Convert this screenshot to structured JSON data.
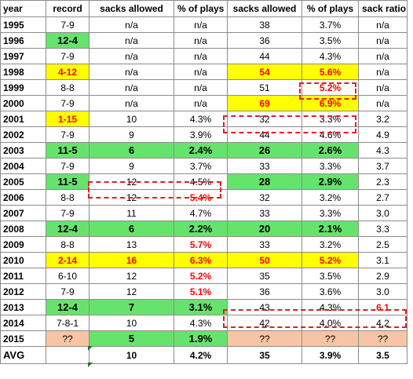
{
  "headers": [
    "year",
    "record",
    "sacks allowed",
    "% of plays",
    "sacks allowed",
    "% of plays",
    "sack ratio"
  ],
  "rows": [
    {
      "year": "1995",
      "record": "7-9",
      "sa1": "n/a",
      "pct1": "n/a",
      "sa2": "38",
      "pct2": "3.7%",
      "ratio": "n/a"
    },
    {
      "year": "1996",
      "record": "12-4",
      "sa1": "n/a",
      "pct1": "n/a",
      "sa2": "36",
      "pct2": "3.5%",
      "ratio": "n/a"
    },
    {
      "year": "1997",
      "record": "7-9",
      "sa1": "n/a",
      "pct1": "n/a",
      "sa2": "44",
      "pct2": "4.3%",
      "ratio": "n/a"
    },
    {
      "year": "1998",
      "record": "4-12",
      "sa1": "n/a",
      "pct1": "n/a",
      "sa2": "54",
      "pct2": "5.6%",
      "ratio": "n/a"
    },
    {
      "year": "1999",
      "record": "8-8",
      "sa1": "n/a",
      "pct1": "n/a",
      "sa2": "51",
      "pct2": "5.2%",
      "ratio": "n/a"
    },
    {
      "year": "2000",
      "record": "7-9",
      "sa1": "n/a",
      "pct1": "n/a",
      "sa2": "69",
      "pct2": "6.9%",
      "ratio": "n/a"
    },
    {
      "year": "2001",
      "record": "1-15",
      "sa1": "10",
      "pct1": "4.3%",
      "sa2": "32",
      "pct2": "3.3%",
      "ratio": "3.2"
    },
    {
      "year": "2002",
      "record": "7-9",
      "sa1": "9",
      "pct1": "3.9%",
      "sa2": "44",
      "pct2": "4.6%",
      "ratio": "4.9"
    },
    {
      "year": "2003",
      "record": "11-5",
      "sa1": "6",
      "pct1": "2.4%",
      "sa2": "26",
      "pct2": "2.6%",
      "ratio": "4.3"
    },
    {
      "year": "2004",
      "record": "7-9",
      "sa1": "9",
      "pct1": "3.7%",
      "sa2": "33",
      "pct2": "3.3%",
      "ratio": "3.7"
    },
    {
      "year": "2005",
      "record": "11-5",
      "sa1": "12",
      "pct1": "4.5%",
      "sa2": "28",
      "pct2": "2.9%",
      "ratio": "2.3"
    },
    {
      "year": "2006",
      "record": "8-8",
      "sa1": "12",
      "pct1": "5.4%",
      "sa2": "32",
      "pct2": "3.2%",
      "ratio": "2.7"
    },
    {
      "year": "2007",
      "record": "7-9",
      "sa1": "11",
      "pct1": "4.7%",
      "sa2": "33",
      "pct2": "3.3%",
      "ratio": "3.0"
    },
    {
      "year": "2008",
      "record": "12-4",
      "sa1": "6",
      "pct1": "2.2%",
      "sa2": "20",
      "pct2": "2.1%",
      "ratio": "3.3"
    },
    {
      "year": "2009",
      "record": "8-8",
      "sa1": "13",
      "pct1": "5.7%",
      "sa2": "33",
      "pct2": "3.2%",
      "ratio": "2.5"
    },
    {
      "year": "2010",
      "record": "2-14",
      "sa1": "16",
      "pct1": "6.3%",
      "sa2": "50",
      "pct2": "5.2%",
      "ratio": "3.1"
    },
    {
      "year": "2011",
      "record": "6-10",
      "sa1": "12",
      "pct1": "5.2%",
      "sa2": "35",
      "pct2": "3.5%",
      "ratio": "2.9"
    },
    {
      "year": "2012",
      "record": "7-9",
      "sa1": "12",
      "pct1": "5.1%",
      "sa2": "36",
      "pct2": "3.6%",
      "ratio": "3.0"
    },
    {
      "year": "2013",
      "record": "12-4",
      "sa1": "7",
      "pct1": "3.1%",
      "sa2": "43",
      "pct2": "4.3%",
      "ratio": "6.1"
    },
    {
      "year": "2014",
      "record": "7-8-1",
      "sa1": "10",
      "pct1": "4.3%",
      "sa2": "42",
      "pct2": "4.0%",
      "ratio": "4.2"
    },
    {
      "year": "2015",
      "record": "??",
      "sa1": "5",
      "pct1": "1.9%",
      "sa2": "??",
      "pct2": "??",
      "ratio": "??"
    }
  ],
  "avg": {
    "year": "AVG",
    "record": "",
    "sa1": "10",
    "pct1": "4.2%",
    "sa2": "35",
    "pct2": "3.9%",
    "ratio": "3.5"
  },
  "colors": {
    "green": "#66e36d",
    "yellow": "#ffff00",
    "peach": "#f7c5a5",
    "red_text": "#ff0000",
    "dashed_box": "#e02020"
  }
}
